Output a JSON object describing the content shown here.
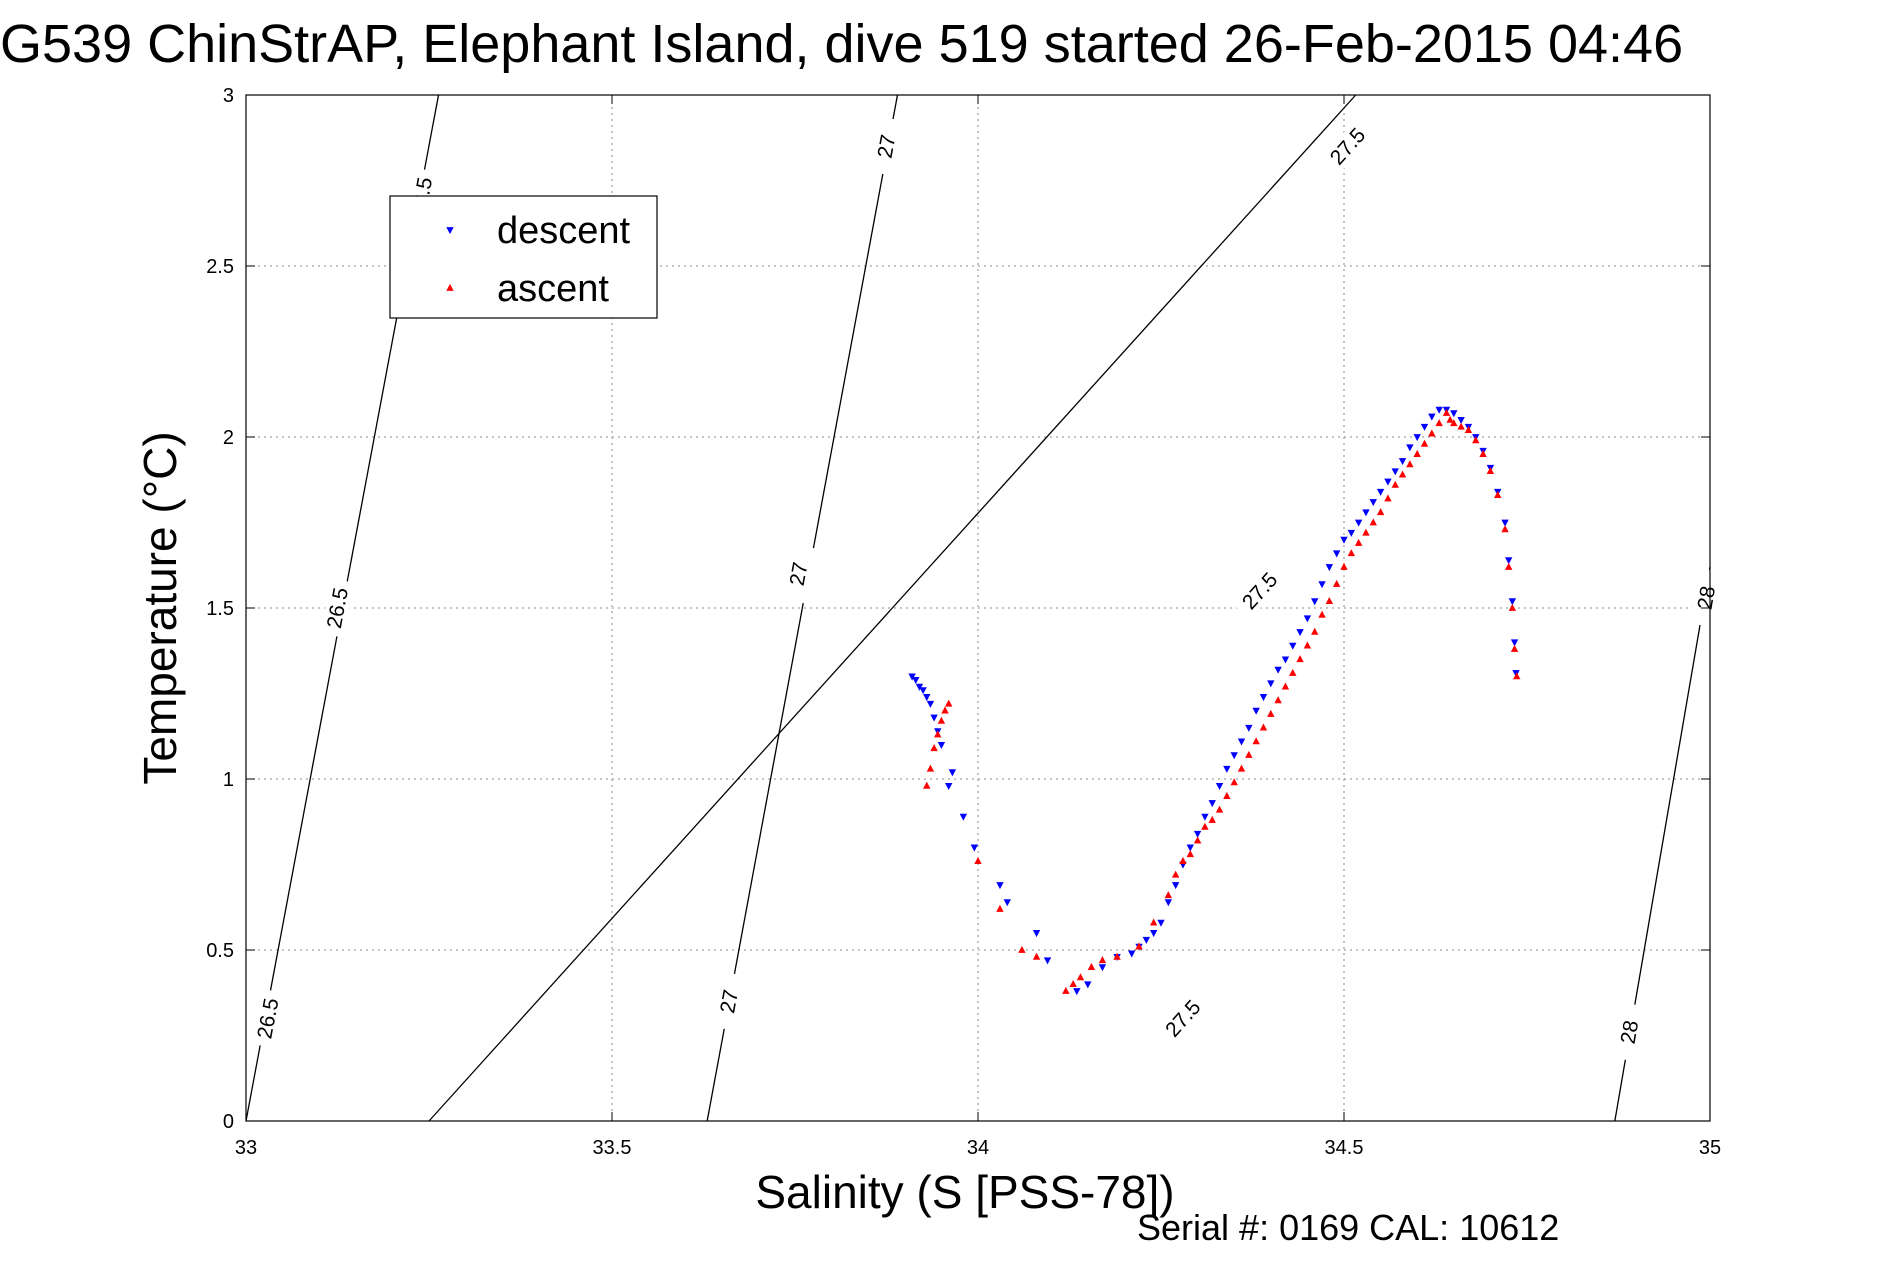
{
  "chart_data": {
    "type": "scatter",
    "title": "G539 ChinStrAP, Elephant Island, dive 519 started 26-Feb-2015 04:46",
    "xlabel": "Salinity (S [PSS-78])",
    "ylabel": "Temperature (°C)",
    "xlim": [
      33,
      35
    ],
    "ylim": [
      0,
      3
    ],
    "x_ticks": [
      "33",
      "33.5",
      "34",
      "34.5",
      "35"
    ],
    "y_ticks": [
      "0",
      "0.5",
      "1",
      "1.5",
      "2",
      "2.5",
      "3"
    ],
    "grid": true,
    "legend_position": "upper-left",
    "series": [
      {
        "name": "descent",
        "marker": "triangle-down",
        "color": "#0000ff",
        "points": [
          [
            33.91,
            1.3
          ],
          [
            33.915,
            1.29
          ],
          [
            33.92,
            1.27
          ],
          [
            33.925,
            1.26
          ],
          [
            33.93,
            1.24
          ],
          [
            33.935,
            1.22
          ],
          [
            33.94,
            1.18
          ],
          [
            33.945,
            1.14
          ],
          [
            33.95,
            1.1
          ],
          [
            33.965,
            1.02
          ],
          [
            33.96,
            0.98
          ],
          [
            33.98,
            0.89
          ],
          [
            33.995,
            0.8
          ],
          [
            34.03,
            0.69
          ],
          [
            34.04,
            0.64
          ],
          [
            34.08,
            0.55
          ],
          [
            34.095,
            0.47
          ],
          [
            34.135,
            0.38
          ],
          [
            34.15,
            0.4
          ],
          [
            34.17,
            0.45
          ],
          [
            34.19,
            0.48
          ],
          [
            34.21,
            0.49
          ],
          [
            34.22,
            0.51
          ],
          [
            34.23,
            0.53
          ],
          [
            34.24,
            0.55
          ],
          [
            34.25,
            0.58
          ],
          [
            34.26,
            0.64
          ],
          [
            34.27,
            0.69
          ],
          [
            34.28,
            0.75
          ],
          [
            34.29,
            0.8
          ],
          [
            34.3,
            0.84
          ],
          [
            34.31,
            0.89
          ],
          [
            34.32,
            0.93
          ],
          [
            34.33,
            0.98
          ],
          [
            34.34,
            1.03
          ],
          [
            34.35,
            1.07
          ],
          [
            34.36,
            1.11
          ],
          [
            34.37,
            1.15
          ],
          [
            34.38,
            1.2
          ],
          [
            34.39,
            1.24
          ],
          [
            34.4,
            1.28
          ],
          [
            34.41,
            1.32
          ],
          [
            34.42,
            1.35
          ],
          [
            34.43,
            1.39
          ],
          [
            34.44,
            1.43
          ],
          [
            34.45,
            1.47
          ],
          [
            34.46,
            1.52
          ],
          [
            34.47,
            1.57
          ],
          [
            34.48,
            1.62
          ],
          [
            34.49,
            1.66
          ],
          [
            34.5,
            1.7
          ],
          [
            34.51,
            1.72
          ],
          [
            34.52,
            1.75
          ],
          [
            34.53,
            1.78
          ],
          [
            34.54,
            1.81
          ],
          [
            34.55,
            1.84
          ],
          [
            34.56,
            1.87
          ],
          [
            34.57,
            1.9
          ],
          [
            34.58,
            1.93
          ],
          [
            34.59,
            1.97
          ],
          [
            34.6,
            2.0
          ],
          [
            34.61,
            2.03
          ],
          [
            34.62,
            2.06
          ],
          [
            34.63,
            2.08
          ],
          [
            34.64,
            2.08
          ],
          [
            34.65,
            2.07
          ],
          [
            34.66,
            2.05
          ],
          [
            34.67,
            2.03
          ],
          [
            34.68,
            2.0
          ],
          [
            34.69,
            1.96
          ],
          [
            34.7,
            1.91
          ],
          [
            34.71,
            1.84
          ],
          [
            34.72,
            1.75
          ],
          [
            34.725,
            1.64
          ],
          [
            34.73,
            1.52
          ],
          [
            34.733,
            1.4
          ],
          [
            34.735,
            1.31
          ]
        ]
      },
      {
        "name": "ascent",
        "marker": "triangle-up",
        "color": "#ff0000",
        "points": [
          [
            33.96,
            1.22
          ],
          [
            33.955,
            1.2
          ],
          [
            33.95,
            1.17
          ],
          [
            33.945,
            1.13
          ],
          [
            33.94,
            1.09
          ],
          [
            33.935,
            1.03
          ],
          [
            33.93,
            0.98
          ],
          [
            34.0,
            0.76
          ],
          [
            34.03,
            0.62
          ],
          [
            34.06,
            0.5
          ],
          [
            34.08,
            0.48
          ],
          [
            34.12,
            0.38
          ],
          [
            34.13,
            0.4
          ],
          [
            34.14,
            0.42
          ],
          [
            34.155,
            0.45
          ],
          [
            34.17,
            0.47
          ],
          [
            34.19,
            0.48
          ],
          [
            34.22,
            0.51
          ],
          [
            34.24,
            0.58
          ],
          [
            34.26,
            0.66
          ],
          [
            34.27,
            0.72
          ],
          [
            34.28,
            0.76
          ],
          [
            34.29,
            0.78
          ],
          [
            34.3,
            0.82
          ],
          [
            34.31,
            0.86
          ],
          [
            34.32,
            0.88
          ],
          [
            34.33,
            0.91
          ],
          [
            34.34,
            0.95
          ],
          [
            34.35,
            0.99
          ],
          [
            34.36,
            1.03
          ],
          [
            34.37,
            1.07
          ],
          [
            34.38,
            1.11
          ],
          [
            34.39,
            1.15
          ],
          [
            34.4,
            1.19
          ],
          [
            34.41,
            1.23
          ],
          [
            34.42,
            1.27
          ],
          [
            34.43,
            1.31
          ],
          [
            34.44,
            1.35
          ],
          [
            34.45,
            1.39
          ],
          [
            34.46,
            1.43
          ],
          [
            34.47,
            1.48
          ],
          [
            34.48,
            1.52
          ],
          [
            34.49,
            1.57
          ],
          [
            34.5,
            1.62
          ],
          [
            34.51,
            1.66
          ],
          [
            34.52,
            1.69
          ],
          [
            34.53,
            1.72
          ],
          [
            34.54,
            1.75
          ],
          [
            34.55,
            1.78
          ],
          [
            34.56,
            1.82
          ],
          [
            34.57,
            1.86
          ],
          [
            34.58,
            1.89
          ],
          [
            34.59,
            1.92
          ],
          [
            34.6,
            1.95
          ],
          [
            34.61,
            1.98
          ],
          [
            34.62,
            2.01
          ],
          [
            34.63,
            2.04
          ],
          [
            34.64,
            2.07
          ],
          [
            34.645,
            2.05
          ],
          [
            34.65,
            2.04
          ],
          [
            34.66,
            2.03
          ],
          [
            34.67,
            2.02
          ],
          [
            34.68,
            1.99
          ],
          [
            34.69,
            1.95
          ],
          [
            34.7,
            1.9
          ],
          [
            34.71,
            1.83
          ],
          [
            34.72,
            1.73
          ],
          [
            34.725,
            1.62
          ],
          [
            34.73,
            1.5
          ],
          [
            34.733,
            1.38
          ],
          [
            34.736,
            1.3
          ]
        ]
      }
    ],
    "contours": [
      {
        "label": "26.5",
        "line": [
          [
            33.0,
            0.0
          ],
          [
            33.263,
            3.0
          ]
        ],
        "label_positions": [
          [
            33.03,
            0.3
          ],
          [
            33.125,
            1.5
          ],
          [
            33.24,
            2.7
          ]
        ]
      },
      {
        "label": "27",
        "line": [
          [
            33.63,
            0.0
          ],
          [
            33.89,
            3.0
          ]
        ],
        "label_positions": [
          [
            33.66,
            0.35
          ],
          [
            33.755,
            1.6
          ],
          [
            33.875,
            2.85
          ]
        ]
      },
      {
        "label": "27.5",
        "line": [
          [
            33.25,
            0.0
          ],
          [
            34.516,
            3.0
          ]
        ],
        "label_positions": [
          [
            34.28,
            0.3
          ],
          [
            34.385,
            1.55
          ],
          [
            34.505,
            2.85
          ]
        ]
      },
      {
        "label": "28",
        "line": [
          [
            34.87,
            0.0
          ],
          [
            35.0,
            1.62
          ]
        ],
        "label_positions": [
          [
            34.89,
            0.26
          ],
          [
            34.995,
            1.53
          ]
        ]
      }
    ]
  },
  "footer": {
    "serial_text": "Serial #: 0169 CAL: 10612"
  }
}
